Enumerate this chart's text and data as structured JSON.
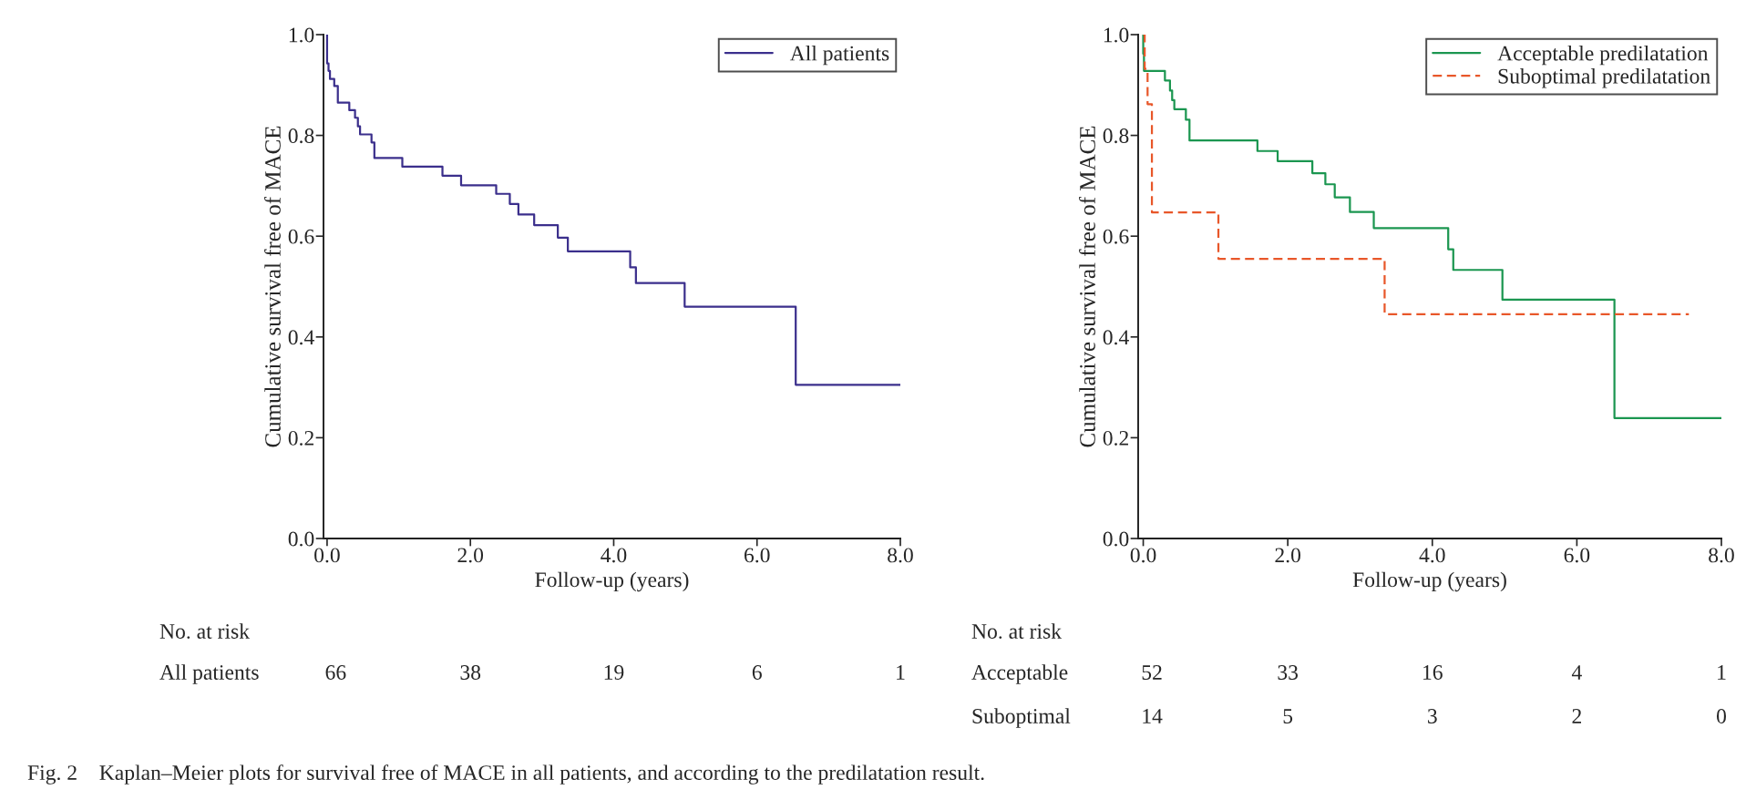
{
  "chart_data": [
    {
      "type": "step",
      "ylabel": "Cumulative survival free of MACE",
      "xlabel": "Follow-up (years)",
      "xlim": [
        -0.05,
        8.0
      ],
      "ylim": [
        0,
        1.0
      ],
      "xticks": [
        {
          "value": 0,
          "label": "0.0"
        },
        {
          "value": 2,
          "label": "2.0"
        },
        {
          "value": 4,
          "label": "4.0"
        },
        {
          "value": 6,
          "label": "6.0"
        },
        {
          "value": 8,
          "label": "8.0"
        }
      ],
      "yticks": [
        {
          "value": 0,
          "label": "0.0"
        },
        {
          "value": 0.2,
          "label": "0.2"
        },
        {
          "value": 0.4,
          "label": "0.4"
        },
        {
          "value": 0.6,
          "label": "0.6"
        },
        {
          "value": 0.8,
          "label": "0.8"
        },
        {
          "value": 1.0,
          "label": "1.0"
        }
      ],
      "legend": "top right",
      "grid": false,
      "series": [
        {
          "name": "All patients",
          "color": "#3b2f8c",
          "line_style": "solid",
          "x": [
            0,
            0.0,
            0.02,
            0.04,
            0.1,
            0.15,
            0.31,
            0.39,
            0.43,
            0.46,
            0.62,
            0.66,
            1.05,
            1.61,
            1.87,
            2.36,
            2.55,
            2.67,
            2.89,
            3.22,
            3.36,
            4.23,
            4.31,
            4.99,
            6.54,
            8.0
          ],
          "values": [
            1.0,
            0.943,
            0.928,
            0.912,
            0.898,
            0.865,
            0.85,
            0.835,
            0.818,
            0.802,
            0.786,
            0.755,
            0.738,
            0.72,
            0.701,
            0.684,
            0.664,
            0.643,
            0.622,
            0.597,
            0.57,
            0.538,
            0.507,
            0.46,
            0.305,
            0.305
          ]
        }
      ],
      "annotations": [
        "No. at risk",
        "All patients",
        "66",
        "38",
        "19",
        "6",
        "1"
      ]
    },
    {
      "type": "step",
      "ylabel": "Cumulative survival free of MACE",
      "xlabel": "Follow-up (years)",
      "xlim": [
        -0.07,
        8.0
      ],
      "ylim": [
        0,
        1.0
      ],
      "xticks": [
        {
          "value": 0,
          "label": "0.0"
        },
        {
          "value": 2,
          "label": "2.0"
        },
        {
          "value": 4,
          "label": "4.0"
        },
        {
          "value": 6,
          "label": "6.0"
        },
        {
          "value": 8,
          "label": "8.0"
        }
      ],
      "yticks": [
        {
          "value": 0,
          "label": "0.0"
        },
        {
          "value": 0.2,
          "label": "0.2"
        },
        {
          "value": 0.4,
          "label": "0.4"
        },
        {
          "value": 0.6,
          "label": "0.6"
        },
        {
          "value": 0.8,
          "label": "0.8"
        },
        {
          "value": 1.0,
          "label": "1.0"
        }
      ],
      "legend": "top right",
      "grid": false,
      "series": [
        {
          "name": "Acceptable predilatation",
          "color": "#1b9650",
          "line_style": "solid",
          "x": [
            0,
            0.0,
            0.01,
            0.3,
            0.37,
            0.4,
            0.43,
            0.59,
            0.64,
            1.58,
            1.86,
            2.34,
            2.52,
            2.65,
            2.86,
            3.19,
            4.22,
            4.29,
            4.97,
            6.52,
            8.0
          ],
          "values": [
            1.0,
            0.962,
            0.928,
            0.909,
            0.889,
            0.87,
            0.852,
            0.831,
            0.79,
            0.769,
            0.749,
            0.725,
            0.703,
            0.677,
            0.648,
            0.616,
            0.574,
            0.533,
            0.474,
            0.239,
            0.239
          ]
        },
        {
          "name": "Suboptimal predilatation",
          "color": "#e8572a",
          "line_style": "dashed",
          "x": [
            0,
            0.02,
            0.06,
            0.12,
            1.04,
            3.34,
            7.55
          ],
          "values": [
            1.0,
            0.932,
            0.862,
            0.647,
            0.555,
            0.445,
            0.445
          ]
        }
      ],
      "annotations": [
        "No. at risk",
        "Acceptable",
        "52",
        "33",
        "16",
        "4",
        "1",
        "Suboptimal",
        "14",
        "5",
        "3",
        "2",
        "0",
        "Fig. 2    Kaplan–Meier plots for survival free of MACE in all patients, and according to the predilatation result."
      ]
    }
  ]
}
